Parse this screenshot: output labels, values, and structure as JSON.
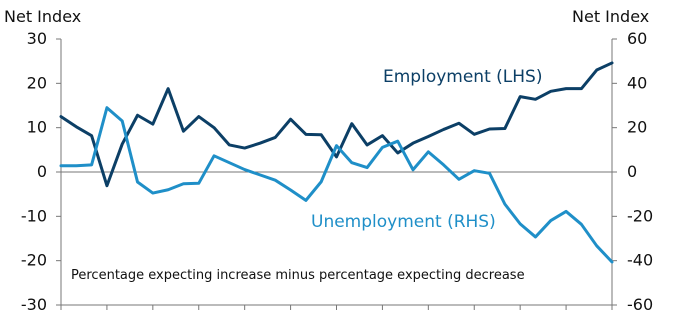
{
  "chart_data": {
    "type": "line",
    "left_axis": {
      "title": "Net Index",
      "ylim": [
        -30,
        30
      ],
      "ticks": [
        30,
        20,
        10,
        0,
        -10,
        -20,
        -30
      ]
    },
    "right_axis": {
      "title": "Net Index",
      "ylim": [
        -60,
        60
      ],
      "ticks": [
        60,
        40,
        20,
        0,
        -20,
        -40,
        -60
      ]
    },
    "x_ticks_count": 12,
    "annotation": "Percentage expecting increase minus percentage expecting decrease",
    "series": [
      {
        "name": "Employment (LHS)",
        "axis": "left",
        "color": "#0c3f66",
        "values": [
          12.5,
          10.2,
          8.2,
          -3.1,
          6.3,
          12.8,
          10.8,
          18.8,
          9.2,
          12.5,
          10.0,
          6.1,
          5.4,
          6.5,
          7.8,
          11.9,
          8.5,
          8.4,
          3.4,
          10.9,
          6.1,
          8.2,
          4.3,
          6.5,
          8.0,
          9.6,
          11.0,
          8.5,
          9.7,
          9.8,
          17.0,
          16.4,
          18.2,
          18.8,
          18.8,
          23.0,
          24.6
        ]
      },
      {
        "name": "Unemployment (RHS)",
        "axis": "right",
        "color": "#1f8fc8",
        "values": [
          2.8,
          2.8,
          3.2,
          29.0,
          23.0,
          -4.5,
          -9.5,
          -8.0,
          -5.3,
          -5.1,
          7.3,
          4.2,
          1.1,
          -1.3,
          -3.7,
          -8.1,
          -12.8,
          -4.4,
          11.9,
          4.2,
          2.0,
          11.1,
          13.9,
          1.0,
          9.1,
          3.2,
          -3.3,
          0.6,
          -0.6,
          -14.5,
          -23.4,
          -29.3,
          -21.9,
          -17.8,
          -23.6,
          -33.3,
          -40.6
        ]
      }
    ]
  }
}
